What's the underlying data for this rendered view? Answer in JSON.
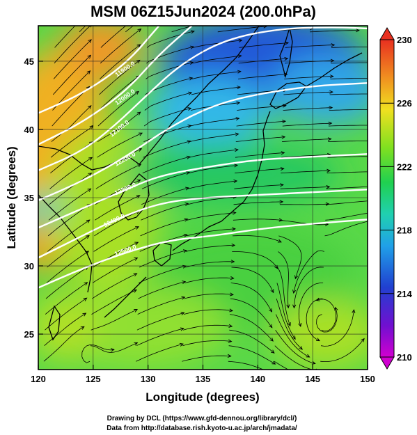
{
  "chart_data": {
    "type": "heatmap",
    "title": "MSM 06Z15Jun2024 (200.0hPa)",
    "xlabel": "Longitude (degrees)",
    "ylabel": "Latitude  (degrees)",
    "xlim": [
      120,
      150
    ],
    "ylim": [
      22.4,
      47.6
    ],
    "x_ticks": [
      "120",
      "125",
      "130",
      "135",
      "140",
      "145",
      "150"
    ],
    "x_tick_values": [
      120,
      125,
      130,
      135,
      140,
      145,
      150
    ],
    "y_ticks": [
      "25",
      "30",
      "35",
      "40",
      "45"
    ],
    "y_tick_values": [
      25,
      30,
      35,
      40,
      45
    ],
    "colorbar": {
      "min": 210,
      "max": 230,
      "ticks": [
        "210",
        "214",
        "218",
        "222",
        "226",
        "230"
      ],
      "tick_values": [
        210,
        214,
        218,
        222,
        226,
        230
      ],
      "colors": [
        "#d000d0",
        "#4020d0",
        "#2060e8",
        "#20c8e0",
        "#20d060",
        "#40d020",
        "#a0e020",
        "#f0e020",
        "#f09020",
        "#e83020"
      ]
    },
    "contours": [
      {
        "label": "11900.0",
        "points": [
          [
            120,
            41.2
          ],
          [
            124,
            42.6
          ],
          [
            128,
            44.8
          ],
          [
            131,
            47.6
          ]
        ]
      },
      {
        "label": "12000.0",
        "points": [
          [
            120,
            38.9
          ],
          [
            124,
            40.5
          ],
          [
            128,
            42.8
          ],
          [
            131,
            45.5
          ],
          [
            134,
            47.6
          ]
        ]
      },
      {
        "label": "12100.0",
        "points": [
          [
            120,
            37.0
          ],
          [
            124,
            38.4
          ],
          [
            127,
            40.3
          ],
          [
            130,
            42.6
          ],
          [
            133,
            44.8
          ],
          [
            137,
            46.6
          ],
          [
            142,
            47.4
          ],
          [
            147,
            47.5
          ],
          [
            150,
            47.4
          ]
        ]
      },
      {
        "label": "12200.0",
        "points": [
          [
            120,
            34.8
          ],
          [
            124,
            36.2
          ],
          [
            128,
            38.0
          ],
          [
            132,
            40.2
          ],
          [
            136,
            41.8
          ],
          [
            140,
            42.6
          ],
          [
            145,
            43.2
          ],
          [
            150,
            43.4
          ]
        ]
      },
      {
        "label": "12300.0",
        "points": [
          [
            120,
            32.8
          ],
          [
            124,
            34.2
          ],
          [
            128,
            35.6
          ],
          [
            131,
            36.6
          ],
          [
            135,
            37.2
          ],
          [
            140,
            37.8
          ],
          [
            145,
            38.0
          ],
          [
            150,
            38.2
          ]
        ]
      },
      {
        "label": "12400.0",
        "points": [
          [
            120,
            30.6
          ],
          [
            123,
            31.8
          ],
          [
            127,
            33.4
          ],
          [
            131,
            34.6
          ],
          [
            135,
            35.0
          ],
          [
            140,
            35.2
          ],
          [
            145,
            35.4
          ],
          [
            150,
            35.6
          ]
        ]
      },
      {
        "label": "12500.0",
        "points": [
          [
            120,
            28.4
          ],
          [
            124,
            29.8
          ],
          [
            128,
            31.0
          ],
          [
            132,
            31.9
          ],
          [
            136,
            32.2
          ],
          [
            140,
            32.7
          ],
          [
            145,
            33.1
          ],
          [
            150,
            33.4
          ]
        ]
      }
    ],
    "contour_labels_shown": [
      "11900.0",
      "12000.0",
      "12100.0",
      "12200.0",
      "12300.0",
      "12400.0",
      "12500.0"
    ],
    "grid": true,
    "vectors": "streamlines of wind at 200.0hPa"
  },
  "credits": {
    "line1": "Drawing by DCL (https://www.gfd-dennou.org/library/dcl/)",
    "line2": "Data from http://database.rish.kyoto-u.ac.jp/arch/jmadata/"
  }
}
